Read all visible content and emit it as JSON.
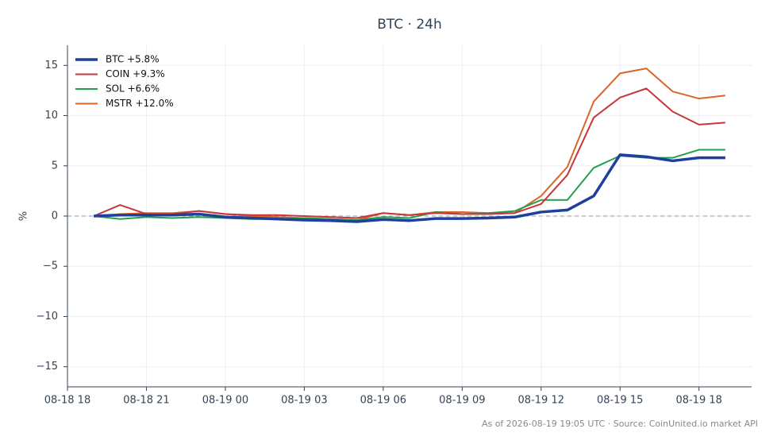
{
  "chart_data": {
    "type": "line",
    "title": "BTC · 24h",
    "ylabel": "%",
    "footnote": "As of 2026-08-19 19:05 UTC · Source: CoinUnited.io market API",
    "x": [
      "08-18 19",
      "08-18 20",
      "08-18 21",
      "08-18 22",
      "08-18 23",
      "08-19 00",
      "08-19 01",
      "08-19 02",
      "08-19 03",
      "08-19 04",
      "08-19 05",
      "08-19 06",
      "08-19 07",
      "08-19 08",
      "08-19 09",
      "08-19 10",
      "08-19 11",
      "08-19 12",
      "08-19 13",
      "08-19 14",
      "08-19 15",
      "08-19 16",
      "08-19 17",
      "08-19 18",
      "08-19 19"
    ],
    "series": [
      {
        "name": "BTC +5.8%",
        "color": "#1f3f9f",
        "width": 3.5,
        "values": [
          0,
          0.1,
          0.1,
          0.1,
          0.2,
          -0.1,
          -0.2,
          -0.3,
          -0.4,
          -0.45,
          -0.55,
          -0.35,
          -0.45,
          -0.25,
          -0.25,
          -0.2,
          -0.1,
          0.4,
          0.6,
          2.0,
          6.1,
          5.9,
          5.5,
          5.8,
          5.8
        ]
      },
      {
        "name": "COIN +9.3%",
        "color": "#c8353a",
        "width": 2,
        "values": [
          0,
          1.1,
          0.2,
          0.2,
          0.5,
          0.2,
          0.1,
          0.1,
          0.0,
          -0.1,
          -0.2,
          0.3,
          0.1,
          0.3,
          0.2,
          0.2,
          0.3,
          1.2,
          4.1,
          9.8,
          11.8,
          12.7,
          10.4,
          9.1,
          9.3
        ]
      },
      {
        "name": "SOL +6.6%",
        "color": "#22a04b",
        "width": 2,
        "values": [
          0,
          -0.3,
          -0.1,
          -0.2,
          -0.1,
          -0.2,
          -0.3,
          -0.3,
          -0.2,
          -0.3,
          -0.4,
          -0.1,
          -0.2,
          0.4,
          0.2,
          0.3,
          0.5,
          1.6,
          1.6,
          4.8,
          6.0,
          5.8,
          5.8,
          6.6,
          6.6
        ]
      },
      {
        "name": "MSTR +12.0%",
        "color": "#d8662a",
        "width": 2,
        "values": [
          0,
          0.2,
          0.3,
          0.3,
          0.5,
          0.2,
          0.0,
          -0.1,
          -0.2,
          -0.3,
          -0.4,
          0.3,
          0.1,
          0.4,
          0.4,
          0.3,
          0.3,
          2.0,
          4.9,
          11.4,
          14.2,
          14.7,
          12.4,
          11.7,
          12.0
        ]
      }
    ],
    "xlim": [
      "08-18 18",
      "08-19 20"
    ],
    "xticks": [
      "08-18 18",
      "08-18 21",
      "08-19 00",
      "08-19 03",
      "08-19 06",
      "08-19 09",
      "08-19 12",
      "08-19 15",
      "08-19 18"
    ],
    "ylim": [
      -17,
      17
    ],
    "yticks": [
      {
        "value": -15,
        "label": "−15"
      },
      {
        "value": -10,
        "label": "−10"
      },
      {
        "value": -5,
        "label": "−5"
      },
      0,
      5,
      10,
      15
    ],
    "grid": true,
    "legend": "upper left"
  }
}
